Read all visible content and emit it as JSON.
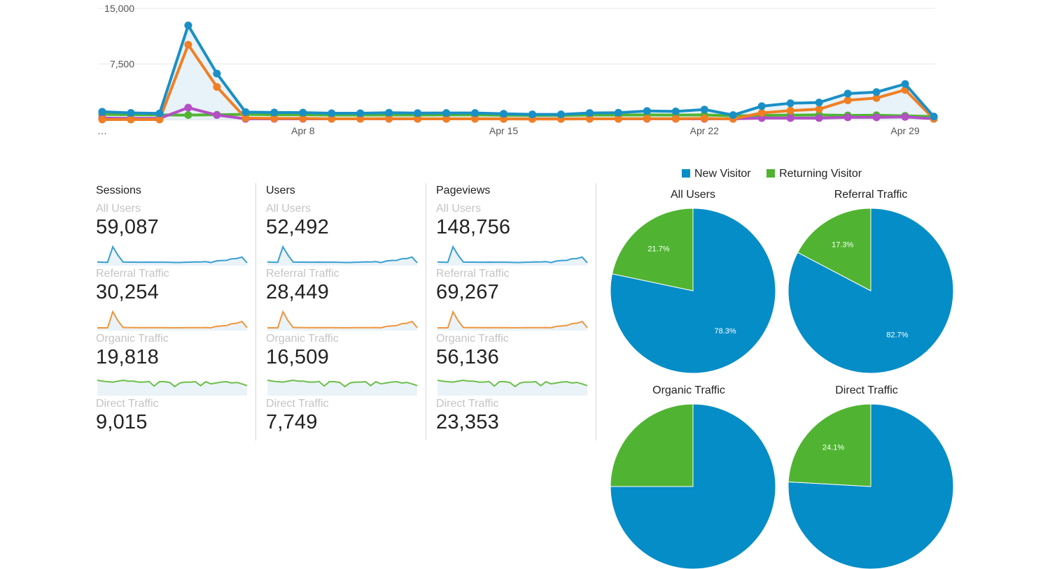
{
  "colors": {
    "sessions_blue": "#1a8fc6",
    "referral_orange": "#f07f24",
    "organic_green": "#50b432",
    "direct_purple": "#b44fc5",
    "new_visitor": "#058dc7",
    "returning_visitor": "#50b432",
    "gridline": "#e8e8e8",
    "label_gray": "#c4c4c4"
  },
  "chart_data": [
    {
      "type": "line",
      "title": "",
      "xlabel": "",
      "ylabel": "",
      "ylim": [
        0,
        15000
      ],
      "yticks": [
        "15,000",
        "7,500"
      ],
      "x_tick_labels": [
        "…",
        "Apr 8",
        "Apr 15",
        "Apr 22",
        "Apr 29"
      ],
      "legend": "none",
      "series": [
        {
          "color": "#1a8fc6",
          "area": true,
          "values": [
            1050,
            900,
            830,
            12700,
            6200,
            1000,
            950,
            930,
            850,
            850,
            920,
            870,
            880,
            880,
            780,
            700,
            700,
            890,
            920,
            1150,
            1100,
            1350,
            600,
            1800,
            2200,
            2300,
            3500,
            3700,
            4800,
            400
          ]
        },
        {
          "color": "#f07f24",
          "area": false,
          "values": [
            0,
            0,
            0,
            10100,
            4400,
            200,
            150,
            150,
            100,
            100,
            120,
            100,
            100,
            100,
            80,
            70,
            70,
            100,
            100,
            120,
            110,
            150,
            80,
            900,
            1200,
            1400,
            2600,
            2900,
            4000,
            100
          ]
        },
        {
          "color": "#50b432",
          "area": false,
          "values": [
            700,
            650,
            620,
            600,
            650,
            700,
            650,
            650,
            600,
            600,
            630,
            600,
            620,
            620,
            580,
            550,
            550,
            600,
            600,
            620,
            600,
            620,
            500,
            550,
            600,
            620,
            550,
            580,
            500,
            400
          ]
        },
        {
          "color": "#b44fc5",
          "area": false,
          "values": [
            200,
            150,
            150,
            1600,
            600,
            100,
            100,
            100,
            100,
            100,
            100,
            100,
            100,
            100,
            100,
            100,
            100,
            100,
            100,
            100,
            100,
            100,
            100,
            200,
            200,
            200,
            300,
            300,
            350,
            100
          ]
        }
      ]
    },
    {
      "type": "pie",
      "title": "All Users",
      "categories": [
        "New Visitor",
        "Returning Visitor"
      ],
      "values": [
        78.3,
        21.7
      ],
      "labels": [
        "78.3%",
        "21.7%"
      ]
    },
    {
      "type": "pie",
      "title": "Referral Traffic",
      "categories": [
        "New Visitor",
        "Returning Visitor"
      ],
      "values": [
        82.7,
        17.3
      ],
      "labels": [
        "82.7%",
        "17.3%"
      ]
    },
    {
      "type": "pie",
      "title": "Organic Traffic",
      "categories": [
        "New Visitor",
        "Returning Visitor"
      ],
      "values": [
        75,
        25
      ],
      "labels": [
        "",
        ""
      ]
    },
    {
      "type": "pie",
      "title": "Direct Traffic",
      "categories": [
        "New Visitor",
        "Returning Visitor"
      ],
      "values": [
        75.9,
        24.1
      ],
      "labels": [
        "",
        "24.1%"
      ]
    }
  ],
  "legend": {
    "new_visitor": "New Visitor",
    "returning_visitor": "Returning Visitor"
  },
  "metrics": [
    {
      "title": "Sessions",
      "segments": [
        {
          "label": "All Users",
          "value": "59,087",
          "color": "#3a9fd1",
          "spark": [
            1050,
            900,
            830,
            12700,
            6200,
            1000,
            950,
            930,
            850,
            850,
            920,
            870,
            880,
            880,
            780,
            700,
            700,
            890,
            920,
            1150,
            1100,
            1350,
            600,
            1800,
            2200,
            2300,
            3500,
            3700,
            4800,
            400
          ]
        },
        {
          "label": "Referral Traffic",
          "value": "30,254",
          "color": "#f0953e",
          "spark": [
            0,
            0,
            0,
            10100,
            4400,
            200,
            150,
            150,
            100,
            100,
            120,
            100,
            100,
            100,
            80,
            70,
            70,
            100,
            100,
            120,
            110,
            150,
            80,
            900,
            1200,
            1400,
            2600,
            2900,
            4000,
            100
          ]
        },
        {
          "label": "Organic Traffic",
          "value": "19,818",
          "color": "#6cbf4a",
          "spark": [
            700,
            650,
            620,
            600,
            650,
            700,
            650,
            650,
            600,
            600,
            630,
            380,
            620,
            620,
            580,
            350,
            550,
            600,
            600,
            620,
            400,
            620,
            500,
            550,
            600,
            620,
            550,
            580,
            500,
            400
          ]
        },
        {
          "label": "Direct Traffic",
          "value": "9,015"
        }
      ]
    },
    {
      "title": "Users",
      "segments": [
        {
          "label": "All Users",
          "value": "52,492",
          "color": "#3a9fd1",
          "spark": [
            1050,
            900,
            830,
            12700,
            6200,
            1000,
            950,
            930,
            850,
            850,
            920,
            870,
            880,
            880,
            780,
            700,
            700,
            890,
            920,
            1150,
            1100,
            1350,
            600,
            1800,
            2200,
            2300,
            3500,
            3700,
            4800,
            400
          ]
        },
        {
          "label": "Referral Traffic",
          "value": "28,449",
          "color": "#f0953e",
          "spark": [
            0,
            0,
            0,
            10100,
            4400,
            200,
            150,
            150,
            100,
            100,
            120,
            100,
            100,
            100,
            80,
            70,
            70,
            100,
            100,
            120,
            110,
            150,
            80,
            900,
            1200,
            1400,
            2600,
            2900,
            4000,
            100
          ]
        },
        {
          "label": "Organic Traffic",
          "value": "16,509",
          "color": "#6cbf4a",
          "spark": [
            700,
            650,
            620,
            600,
            650,
            700,
            650,
            650,
            600,
            600,
            630,
            380,
            620,
            620,
            580,
            350,
            550,
            600,
            600,
            620,
            400,
            620,
            500,
            550,
            600,
            620,
            550,
            580,
            500,
            400
          ]
        },
        {
          "label": "Direct Traffic",
          "value": "7,749"
        }
      ]
    },
    {
      "title": "Pageviews",
      "segments": [
        {
          "label": "All Users",
          "value": "148,756",
          "color": "#3a9fd1",
          "spark": [
            1050,
            900,
            830,
            12700,
            6200,
            1000,
            950,
            930,
            850,
            850,
            920,
            870,
            880,
            880,
            780,
            700,
            700,
            890,
            920,
            1150,
            1100,
            1350,
            600,
            1800,
            2200,
            2300,
            3500,
            3700,
            4800,
            400
          ]
        },
        {
          "label": "Referral Traffic",
          "value": "69,267",
          "color": "#f0953e",
          "spark": [
            0,
            0,
            0,
            10100,
            4400,
            200,
            150,
            150,
            100,
            100,
            120,
            100,
            100,
            100,
            80,
            70,
            70,
            100,
            100,
            120,
            110,
            150,
            80,
            900,
            1200,
            1400,
            2600,
            2900,
            4000,
            100
          ]
        },
        {
          "label": "Organic Traffic",
          "value": "56,136",
          "color": "#6cbf4a",
          "spark": [
            700,
            650,
            620,
            600,
            650,
            700,
            650,
            650,
            600,
            600,
            630,
            380,
            620,
            620,
            580,
            350,
            550,
            600,
            600,
            620,
            400,
            620,
            500,
            550,
            600,
            620,
            550,
            580,
            500,
            400
          ]
        },
        {
          "label": "Direct Traffic",
          "value": "23,353"
        }
      ]
    }
  ]
}
